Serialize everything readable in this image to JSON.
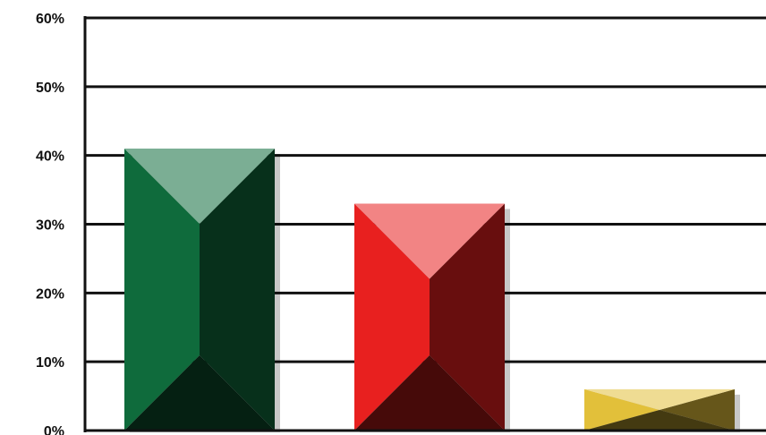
{
  "chart_data": {
    "type": "bar",
    "categories": [
      "",
      "",
      ""
    ],
    "values": [
      41,
      33,
      6
    ],
    "colors": [
      "#0f6b3c",
      "#e8201f",
      "#e2c03a"
    ],
    "ylim": [
      0,
      60
    ],
    "yticks": [
      0,
      10,
      20,
      30,
      40,
      50,
      60
    ],
    "ytick_labels": [
      "0%",
      "10%",
      "20%",
      "30%",
      "40%",
      "50%",
      "60%"
    ],
    "grid": true,
    "legend": false,
    "style": "3d-pyramid-bevel"
  }
}
